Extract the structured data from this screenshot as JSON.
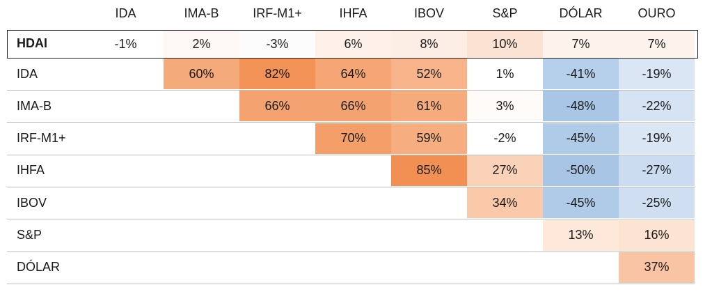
{
  "table": {
    "columns": [
      "IDA",
      "IMA-B",
      "IRF-M1+",
      "IHFA",
      "IBOV",
      "S&P",
      "DÓLAR",
      "OURO"
    ],
    "rows": [
      {
        "label": "HDAI",
        "cells": [
          "-1%",
          "2%",
          "-3%",
          "6%",
          "8%",
          "10%",
          "7%",
          "7%"
        ],
        "colors": [
          "#ffffff",
          "#fdf8f5",
          "#fcfcfc",
          "#fdf1ea",
          "#fceee4",
          "#fbe2d2",
          "#fdf3ec",
          "#fdf3ec"
        ]
      },
      {
        "label": "IDA",
        "cells": [
          null,
          "60%",
          "82%",
          "64%",
          "52%",
          "1%",
          "-41%",
          "-19%"
        ],
        "colors": [
          null,
          "#f5aa7c",
          "#f39257",
          "#f6a675",
          "#f7b48b",
          "#ffffff",
          "#b6cfea",
          "#dae6f4"
        ]
      },
      {
        "label": "IMA-B",
        "cells": [
          null,
          null,
          "66%",
          "66%",
          "61%",
          "3%",
          "-48%",
          "-22%"
        ],
        "colors": [
          null,
          null,
          "#f4a370",
          "#f4a370",
          "#f5ab7b",
          "#fefbf9",
          "#a9c6e6",
          "#d5e3f3"
        ]
      },
      {
        "label": "IRF-M1+",
        "cells": [
          null,
          null,
          null,
          "70%",
          "59%",
          "-2%",
          "-45%",
          "-19%"
        ],
        "colors": [
          null,
          null,
          null,
          "#f49e69",
          "#f6ad7f",
          "#ffffff",
          "#b0cbe8",
          "#dae6f4"
        ]
      },
      {
        "label": "IHFA",
        "cells": [
          null,
          null,
          null,
          null,
          "85%",
          "27%",
          "-50%",
          "-27%"
        ],
        "colors": [
          null,
          null,
          null,
          null,
          "#f28f52",
          "#fad2b8",
          "#a8c5e6",
          "#cbdcf0"
        ]
      },
      {
        "label": "IBOV",
        "cells": [
          null,
          null,
          null,
          null,
          null,
          "34%",
          "-45%",
          "-25%"
        ],
        "colors": [
          null,
          null,
          null,
          null,
          null,
          "#f9c9a9",
          "#b0cbe8",
          "#cfdff1"
        ]
      },
      {
        "label": "S&P",
        "cells": [
          null,
          null,
          null,
          null,
          null,
          null,
          "13%",
          "16%"
        ],
        "colors": [
          null,
          null,
          null,
          null,
          null,
          null,
          "#fde8da",
          "#fce3d2"
        ]
      },
      {
        "label": "DÓLAR",
        "cells": [
          null,
          null,
          null,
          null,
          null,
          null,
          null,
          "37%"
        ],
        "colors": [
          null,
          null,
          null,
          null,
          null,
          null,
          null,
          "#f8c4a3"
        ]
      }
    ]
  }
}
